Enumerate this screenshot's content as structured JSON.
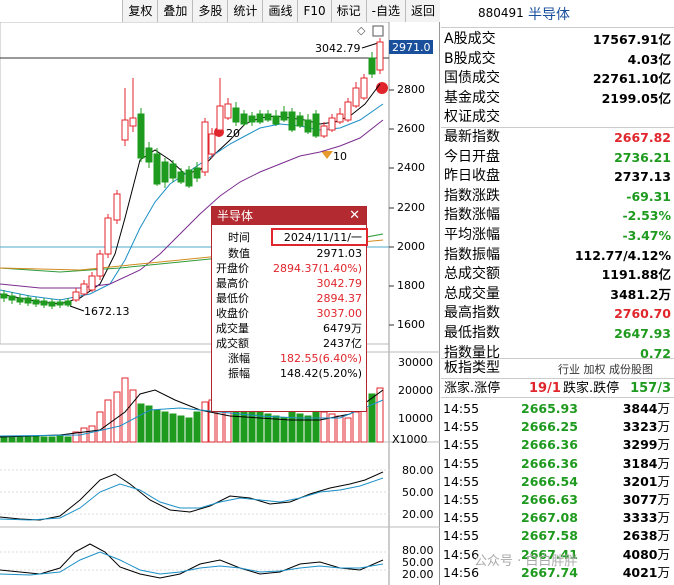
{
  "toolbar": {
    "buttons": [
      "复权",
      "叠加",
      "多股",
      "统计",
      "画线",
      "F10",
      "标记",
      "-自选",
      "返回"
    ]
  },
  "chart": {
    "last_price_tag": "2971.0",
    "high_label": "3042.79",
    "low_label": "1672.13",
    "marker_20": "20",
    "marker_10": "10",
    "price_axis": [
      "2800",
      "2600",
      "2400",
      "2200",
      "2000",
      "1800",
      "1600"
    ],
    "volume_axis": [
      "30000",
      "20000",
      "10000"
    ],
    "volume_unit": "X1000",
    "osc1_axis": [
      "80.00",
      "50.00",
      "20.00"
    ],
    "osc2_axis": [
      "80.00",
      "50.00",
      "20.00"
    ]
  },
  "popup": {
    "title": "半导体",
    "close": "✕",
    "rows": [
      {
        "label": "时间",
        "value": "2024/11/11/一"
      },
      {
        "label": "数值",
        "value": "2971.03"
      },
      {
        "label": "开盘价",
        "value": "2894.37(1.40%)"
      },
      {
        "label": "最高价",
        "value": "3042.79"
      },
      {
        "label": "最低价",
        "value": "2894.37"
      },
      {
        "label": "收盘价",
        "value": "3037.00"
      },
      {
        "label": "成交量",
        "value": "6479万"
      },
      {
        "label": "成交额",
        "value": "2437亿"
      },
      {
        "label": "涨幅",
        "value": "182.55(6.40%)"
      },
      {
        "label": "振幅",
        "value": "148.42(5.20%)"
      }
    ]
  },
  "info": {
    "code": "880491",
    "name": "半导体",
    "rows": [
      {
        "label": "A股成交",
        "value": "17567.91亿"
      },
      {
        "label": "B股成交",
        "value": "4.03亿"
      },
      {
        "label": "国债成交",
        "value": "22761.10亿"
      },
      {
        "label": "基金成交",
        "value": "2199.05亿"
      },
      {
        "label": "权证成交",
        "value": ""
      },
      {
        "label": "最新指数",
        "value": "2667.82"
      },
      {
        "label": "今日开盘",
        "value": "2736.21"
      },
      {
        "label": "昨日收盘",
        "value": "2737.13"
      },
      {
        "label": "指数涨跌",
        "value": "-69.31"
      },
      {
        "label": "指数涨幅",
        "value": "-2.53%"
      },
      {
        "label": "平均涨幅",
        "value": "-3.47%"
      },
      {
        "label": "指数振幅",
        "value": "112.77/4.12%"
      },
      {
        "label": "总成交额",
        "value": "1191.88亿"
      },
      {
        "label": "总成交量",
        "value": "3481.2万"
      },
      {
        "label": "最高指数",
        "value": "2760.70"
      },
      {
        "label": "最低指数",
        "value": "2647.93"
      },
      {
        "label": "指数量比",
        "value": "0.72"
      }
    ],
    "type_label": "板指类型",
    "type_tabs": "行业 加权 成份股图",
    "updown": {
      "up_label": "涨家.涨停",
      "up_value": "19/1",
      "down_label": "跌家.跌停",
      "down_value": "157/3"
    },
    "ticks": [
      {
        "time": "14:55",
        "price": "2665.93",
        "vol": "3844",
        "unit": "万"
      },
      {
        "time": "14:55",
        "price": "2666.25",
        "vol": "3323",
        "unit": "万"
      },
      {
        "time": "14:55",
        "price": "2666.36",
        "vol": "3299",
        "unit": "万"
      },
      {
        "time": "14:55",
        "price": "2666.36",
        "vol": "3184",
        "unit": "万"
      },
      {
        "time": "14:55",
        "price": "2666.54",
        "vol": "3201",
        "unit": "万"
      },
      {
        "time": "14:55",
        "price": "2666.63",
        "vol": "3077",
        "unit": "万"
      },
      {
        "time": "14:55",
        "price": "2667.08",
        "vol": "3333",
        "unit": "万"
      },
      {
        "time": "14:55",
        "price": "2667.58",
        "vol": "2638",
        "unit": "万"
      },
      {
        "time": "14:56",
        "price": "2667.41",
        "vol": "4080",
        "unit": "万"
      },
      {
        "time": "14:56",
        "price": "2667.74",
        "vol": "4021",
        "unit": "万"
      }
    ]
  },
  "watermark": "公众号 · 白白胖胖",
  "colors": {
    "up": "#e0262c",
    "down": "#1e9a1e",
    "popup_header": "#b32a30"
  }
}
